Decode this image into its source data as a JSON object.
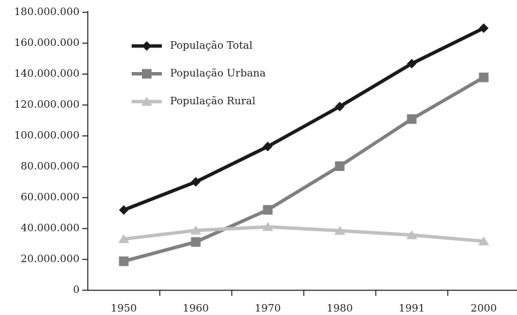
{
  "chart_data": {
    "type": "line",
    "categories": [
      "1950",
      "1960",
      "1970",
      "1980",
      "1991",
      "2000"
    ],
    "series": [
      {
        "name": "População Total",
        "color": "#1a1a1a",
        "marker": "diamond",
        "values": [
          52000000,
          70200000,
          93100000,
          119000000,
          146800000,
          169800000
        ]
      },
      {
        "name": "População Urbana",
        "color": "#808080",
        "marker": "square",
        "values": [
          18800000,
          31300000,
          52100000,
          80400000,
          110900000,
          137900000
        ]
      },
      {
        "name": "População Rural",
        "color": "#c0c0c0",
        "marker": "triangle",
        "values": [
          33200000,
          38800000,
          41100000,
          38600000,
          35800000,
          31800000
        ]
      }
    ],
    "ylim": [
      0,
      180000000
    ],
    "yticks": [
      0,
      {
        "value": 20000000,
        "label": "20.000.000"
      },
      {
        "value": 40000000,
        "label": "40.000.000"
      },
      {
        "value": 60000000,
        "label": "60.000.000"
      },
      {
        "value": 80000000,
        "label": "80.000.000"
      },
      {
        "value": 100000000,
        "label": "100.000.000"
      },
      {
        "value": 120000000,
        "label": "120.000.000"
      },
      {
        "value": 140000000,
        "label": "140.000.000"
      },
      {
        "value": 160000000,
        "label": "160.000.000"
      },
      {
        "value": 180000000,
        "label": "180.000.000"
      }
    ],
    "grid": false,
    "legend": "upper left"
  }
}
